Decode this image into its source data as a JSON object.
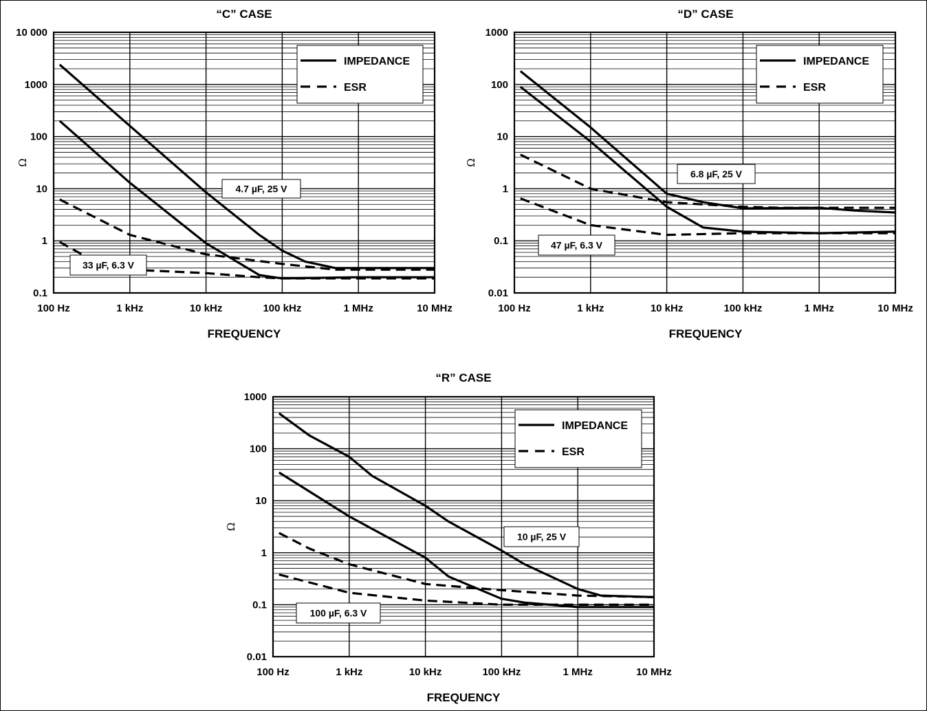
{
  "chart_data": [
    {
      "type": "line",
      "title": "“C” CASE",
      "xlabel": "FREQUENCY",
      "ylabel": "Ω",
      "xscale": "log",
      "yscale": "log",
      "xlim": [
        100,
        10000000
      ],
      "ylim": [
        0.1,
        10000
      ],
      "x_tick_labels": [
        "100 Hz",
        "1 kHz",
        "10 kHz",
        "100 kHz",
        "1 MHz",
        "10 MHz"
      ],
      "y_tick_labels": [
        "0.1",
        "1",
        "10",
        "100",
        "1000",
        "10 000"
      ],
      "grid": true,
      "legend": {
        "position": "top-right",
        "entries": [
          {
            "label": "IMPEDANCE",
            "style": "solid"
          },
          {
            "label": "ESR",
            "style": "dashed"
          }
        ]
      },
      "annotations": [
        {
          "text": "4.7 µF, 25 V",
          "x": 20000,
          "y": 7.5
        },
        {
          "text": "33 µF, 6.3 V",
          "x": 150,
          "y": 0.32
        }
      ],
      "series": [
        {
          "style": "solid",
          "points": [
            [
              120,
              2400
            ],
            [
              1000,
              160
            ],
            [
              10000,
              8.5
            ],
            [
              50000,
              1.3
            ],
            [
              100000,
              0.65
            ],
            [
              200000,
              0.4
            ],
            [
              500000,
              0.3
            ],
            [
              1000000,
              0.3
            ],
            [
              10000000,
              0.3
            ]
          ]
        },
        {
          "style": "dashed",
          "points": [
            [
              120,
              6.2
            ],
            [
              1000,
              1.3
            ],
            [
              10000,
              0.55
            ],
            [
              100000,
              0.36
            ],
            [
              500000,
              0.28
            ],
            [
              10000000,
              0.28
            ]
          ]
        },
        {
          "style": "solid",
          "points": [
            [
              120,
              200
            ],
            [
              1000,
              13
            ],
            [
              10000,
              0.9
            ],
            [
              50000,
              0.22
            ],
            [
              100000,
              0.19
            ],
            [
              1000000,
              0.2
            ],
            [
              10000000,
              0.2
            ]
          ]
        },
        {
          "style": "dashed",
          "points": [
            [
              120,
              0.95
            ],
            [
              300,
              0.45
            ],
            [
              1000,
              0.28
            ],
            [
              10000,
              0.24
            ],
            [
              50000,
              0.2
            ],
            [
              100000,
              0.19
            ],
            [
              10000000,
              0.19
            ]
          ]
        }
      ]
    },
    {
      "type": "line",
      "title": "“D” CASE",
      "xlabel": "FREQUENCY",
      "ylabel": "Ω",
      "xscale": "log",
      "yscale": "log",
      "xlim": [
        100,
        10000000
      ],
      "ylim": [
        0.01,
        1000
      ],
      "x_tick_labels": [
        "100 Hz",
        "1 kHz",
        "10 kHz",
        "100 kHz",
        "1 MHz",
        "10 MHz"
      ],
      "y_tick_labels": [
        "0.01",
        "0.1",
        "1",
        "10",
        "100",
        "1000"
      ],
      "grid": true,
      "legend": {
        "position": "top-right",
        "entries": [
          {
            "label": "IMPEDANCE",
            "style": "solid"
          },
          {
            "label": "ESR",
            "style": "dashed"
          }
        ]
      },
      "annotations": [
        {
          "text": "6.8 µF, 25 V",
          "x": 15000,
          "y": 2.2
        },
        {
          "text": "47 µF, 6.3 V",
          "x": 150,
          "y": 0.11
        }
      ],
      "series": [
        {
          "style": "solid",
          "points": [
            [
              120,
              180
            ],
            [
              1000,
              15
            ],
            [
              10000,
              0.8
            ],
            [
              30000,
              0.55
            ],
            [
              100000,
              0.42
            ],
            [
              1000000,
              0.43
            ],
            [
              3000000,
              0.38
            ],
            [
              10000000,
              0.35
            ]
          ]
        },
        {
          "style": "dashed",
          "points": [
            [
              120,
              4.5
            ],
            [
              1000,
              1
            ],
            [
              10000,
              0.55
            ],
            [
              100000,
              0.45
            ],
            [
              300000,
              0.43
            ],
            [
              10000000,
              0.43
            ]
          ]
        },
        {
          "style": "solid",
          "points": [
            [
              120,
              90
            ],
            [
              1000,
              8
            ],
            [
              10000,
              0.45
            ],
            [
              30000,
              0.18
            ],
            [
              100000,
              0.15
            ],
            [
              1000000,
              0.14
            ],
            [
              10000000,
              0.15
            ]
          ]
        },
        {
          "style": "dashed",
          "points": [
            [
              120,
              0.65
            ],
            [
              1000,
              0.2
            ],
            [
              10000,
              0.13
            ],
            [
              100000,
              0.14
            ],
            [
              1000000,
              0.14
            ],
            [
              10000000,
              0.14
            ]
          ]
        }
      ]
    },
    {
      "type": "line",
      "title": "“R” CASE",
      "xlabel": "FREQUENCY",
      "ylabel": "Ω",
      "xscale": "log",
      "yscale": "log",
      "xlim": [
        100,
        10000000
      ],
      "ylim": [
        0.01,
        1000
      ],
      "x_tick_labels": [
        "100 Hz",
        "1 kHz",
        "10 kHz",
        "100 kHz",
        "1 MHz",
        "10 MHz"
      ],
      "y_tick_labels": [
        "0.01",
        "0.1",
        "1",
        "10",
        "100",
        "1000"
      ],
      "grid": true,
      "legend": {
        "position": "top-right",
        "entries": [
          {
            "label": "IMPEDANCE",
            "style": "solid"
          },
          {
            "label": "ESR",
            "style": "dashed"
          }
        ]
      },
      "annotations": [
        {
          "text": "10 µF, 25 V",
          "x": 150000,
          "y": 2.4
        },
        {
          "text": "100 µF, 6.3 V",
          "x": 300,
          "y": 0.085
        }
      ],
      "series": [
        {
          "style": "solid",
          "points": [
            [
              120,
              480
            ],
            [
              300,
              180
            ],
            [
              1000,
              70
            ],
            [
              2000,
              30
            ],
            [
              10000,
              8
            ],
            [
              20000,
              4
            ],
            [
              100000,
              1.1
            ],
            [
              200000,
              0.6
            ],
            [
              1000000,
              0.2
            ],
            [
              2000000,
              0.15
            ],
            [
              10000000,
              0.14
            ]
          ]
        },
        {
          "style": "dashed",
          "points": [
            [
              120,
              2.4
            ],
            [
              300,
              1.2
            ],
            [
              1000,
              0.6
            ],
            [
              10000,
              0.25
            ],
            [
              100000,
              0.19
            ],
            [
              1000000,
              0.15
            ],
            [
              10000000,
              0.14
            ]
          ]
        },
        {
          "style": "solid",
          "points": [
            [
              120,
              35
            ],
            [
              1000,
              5
            ],
            [
              10000,
              0.8
            ],
            [
              20000,
              0.35
            ],
            [
              100000,
              0.13
            ],
            [
              200000,
              0.11
            ],
            [
              1000000,
              0.09
            ],
            [
              10000000,
              0.09
            ]
          ]
        },
        {
          "style": "dashed",
          "points": [
            [
              120,
              0.38
            ],
            [
              1000,
              0.17
            ],
            [
              10000,
              0.12
            ],
            [
              100000,
              0.1
            ],
            [
              1000000,
              0.1
            ],
            [
              10000000,
              0.1
            ]
          ]
        }
      ]
    }
  ]
}
